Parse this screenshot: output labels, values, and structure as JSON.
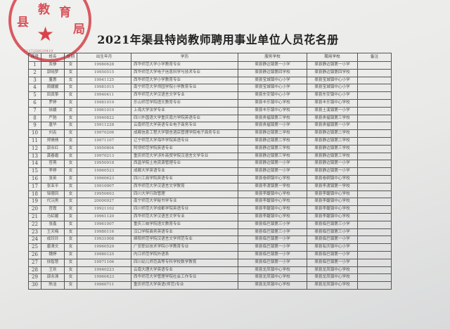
{
  "title": "2021年渠县特岗教师聘用事业单位人员花名册",
  "stamp": {
    "text": "县教育局",
    "code": "5117250029419",
    "color": "#d2283a"
  },
  "columns": [
    "序号",
    "姓名",
    "性别",
    "出生年月",
    "学历",
    "服务学校",
    "聘用学校",
    "备注"
  ],
  "rows": [
    [
      "1",
      "贾静",
      "女",
      "19980628",
      "西华师范大学小学教育专业",
      "渠县静边镇第一小学",
      "渠县静边镇第一小学",
      ""
    ],
    [
      "2",
      "郭晓梦",
      "女",
      "19950515",
      "西华师范大学电子信息科学与技术专业",
      "渠县静边镇第四学校",
      "渠县静边镇第四学校",
      ""
    ],
    [
      "3",
      "董惠",
      "女",
      "19941125",
      "西华师范大学小学教育专业",
      "渠县宝城镇中心小学",
      "渠县宝城镇中心小学",
      ""
    ],
    [
      "4",
      "周媛媛",
      "女",
      "19981015",
      "南宁师范大学师园学院小学教育专业",
      "渠县宝城镇中心小学",
      "渠县宝城镇中心小学",
      ""
    ],
    [
      "5",
      "田真筝",
      "女",
      "19940411",
      "西华师范大学汉语言文学专业",
      "渠县东安镇中心小学",
      "渠县东安镇中心小学",
      ""
    ],
    [
      "6",
      "罗婷",
      "女",
      "19981019",
      "乐山师范学院语文教育专业",
      "渠县丰乐镇中心学校",
      "渠县丰乐镇中心学校",
      ""
    ],
    [
      "7",
      "徐媛",
      "女",
      "19961010",
      "上海大学法学专业",
      "渠县丰乐镇中心学校",
      "渠县土溪镇第一小学",
      ""
    ],
    [
      "8",
      "严驰",
      "女",
      "19940822",
      "四川外国语大学重庆南方学院英语专业",
      "渠县贵福镇第三学校",
      "渠县贵福镇第三学校",
      ""
    ],
    [
      "9",
      "唐华",
      "女",
      "19911228",
      "云南师范大学英语专业电子商务专业",
      "渠县贵福镇第一小学",
      "渠县贵福镇第一小学",
      ""
    ],
    [
      "10",
      "刘垚",
      "女",
      "19970206",
      "成都信息工程大学银杏酒店管理学院电子商务专业",
      "渠县静边镇第二学校",
      "渠县静边镇第二学校",
      ""
    ],
    [
      "11",
      "郑倩倩",
      "女",
      "19971107",
      "辽宁师范大学海华学院英语专业",
      "渠县静边镇第二学校",
      "渠县静边镇第二学校",
      ""
    ],
    [
      "12",
      "郭永红",
      "女",
      "19950804",
      "阿坝师范学院英语专业",
      "渠县静边镇第三学校",
      "渠县静边镇第三学校",
      ""
    ],
    [
      "13",
      "龚春霜",
      "女",
      "19970213",
      "重庆师范大学涉外商贸学院汉语言文学专业",
      "渠县静边镇第三学校",
      "渠县静边镇第三学校",
      ""
    ],
    [
      "14",
      "官燕",
      "女",
      "19950918",
      "西昌学院土地资源管理专业",
      "渠县静边镇第一小学",
      "渠县静边镇第一小学",
      ""
    ],
    [
      "15",
      "李婷",
      "女",
      "19960523",
      "成都大学英语专业",
      "渠县静边镇第一小学",
      "渠县静边镇第一小学",
      ""
    ],
    [
      "16",
      "张英",
      "女",
      "19960623",
      "四川工商学院英语专业",
      "渠县卷硐镇中心学校",
      "渠县卷硐镇中心学校",
      ""
    ],
    [
      "17",
      "张亚平",
      "女",
      "19910907",
      "西华师范大学汉语言文学教育",
      "渠县李渡镇第一学校",
      "渠县李渡镇第一学校",
      ""
    ],
    [
      "18",
      "邹德凤",
      "女",
      "19950603",
      "四川大学行政管理",
      "渠县李馥镇中心学校",
      "渠县李馥镇中心学校",
      ""
    ],
    [
      "19",
      "代沅男",
      "女",
      "20000927",
      "南宁师范大学秘书学专业",
      "渠县李馥镇中心学校",
      "渠县李馥镇中心学校",
      ""
    ],
    [
      "20",
      "官霞",
      "女",
      "19921102",
      "四川师范大学成都学院英语专业",
      "渠县李馥镇中心学校",
      "渠县李馥镇中心学校",
      ""
    ],
    [
      "21",
      "马虹媛",
      "女",
      "19961120",
      "西华师范大学汉语言文学专业",
      "渠县李馥镇中心学校",
      "渠县李馥镇中心学校",
      ""
    ],
    [
      "22",
      "张鑫",
      "女",
      "19961007",
      "重庆三峡学院语文教育专业",
      "渠县临巴镇第三小学",
      "渠县临巴镇第三小学",
      ""
    ],
    [
      "23",
      "王天梅",
      "女",
      "19980116",
      "汉口学院商务英语专业",
      "渠县临巴镇第三小学",
      "渠县临巴镇第三小学",
      ""
    ],
    [
      "24",
      "成玲玲",
      "女",
      "19931008",
      "绵阳师范学院汉语言文学师范专业",
      "渠县临巴镇第一小学",
      "渠县临巴镇第一小学",
      ""
    ],
    [
      "25",
      "唐清文",
      "女",
      "19960529",
      "广安职业技术学院小学教育专业",
      "渠县临巴镇第一小学",
      "渠县有庆镇中心小学",
      ""
    ],
    [
      "26",
      "魏婷",
      "女",
      "19980125",
      "内江师范学院外语系",
      "渠县临巴镇第一小学",
      "渠县临巴镇第一小学",
      ""
    ],
    [
      "27",
      "徐智慧",
      "女",
      "19971106",
      "四川幼儿师范高等专科学校数学教育",
      "渠县临巴镇第一小学",
      "渠县临巴镇第一小学",
      ""
    ],
    [
      "28",
      "王欢",
      "女",
      "19940223",
      "云南大理大学英语专业",
      "渠县龙凤镇中心学校",
      "渠县龙凤镇中心学校",
      ""
    ],
    [
      "29",
      "邵永清",
      "女",
      "19960423",
      "西华师范大学管理学院社会工作专业",
      "渠县龙凤镇中心学校",
      "渠县龙凤镇中心学校",
      ""
    ],
    [
      "30",
      "陈洁",
      "女",
      "19960711",
      "重庆师范大学英语(师范)专业",
      "渠县龙凤镇中心学校",
      "渠县龙凤镇中心学校",
      ""
    ]
  ]
}
